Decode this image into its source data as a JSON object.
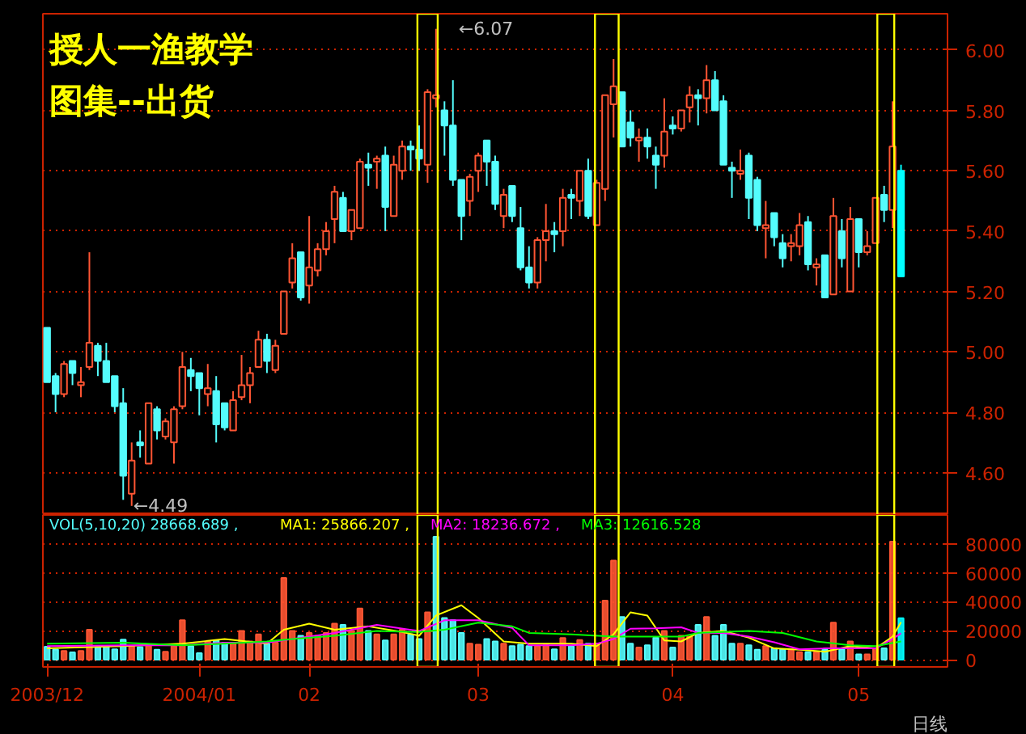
{
  "chart_data": [
    {
      "type": "candlestick",
      "categories": [
        "2003/12",
        null,
        null,
        null,
        null,
        null,
        null,
        null,
        null,
        null,
        null,
        null,
        null,
        null,
        null,
        null,
        null,
        null,
        "2004/01",
        null,
        null,
        null,
        null,
        null,
        null,
        null,
        null,
        null,
        null,
        null,
        null,
        "02",
        null,
        null,
        null,
        null,
        null,
        null,
        null,
        null,
        null,
        null,
        null,
        null,
        null,
        null,
        null,
        null,
        null,
        null,
        null,
        "03",
        null,
        null,
        null,
        null,
        null,
        null,
        null,
        null,
        null,
        null,
        null,
        null,
        null,
        null,
        null,
        null,
        null,
        null,
        null,
        null,
        null,
        null,
        "04",
        null,
        null,
        null,
        null,
        null,
        null,
        null,
        null,
        null,
        null,
        null,
        null,
        null,
        null,
        null,
        null,
        null,
        null,
        null,
        null,
        null,
        "05",
        null,
        null,
        null,
        null,
        null
      ],
      "ohlc": [
        [
          5.08,
          5.08,
          4.9,
          4.9
        ],
        [
          4.92,
          4.93,
          4.8,
          4.86
        ],
        [
          4.86,
          4.97,
          4.85,
          4.96
        ],
        [
          4.97,
          4.97,
          4.89,
          4.93
        ],
        [
          4.89,
          4.95,
          4.85,
          4.9
        ],
        [
          4.95,
          5.33,
          4.94,
          5.03
        ],
        [
          5.02,
          5.03,
          4.92,
          4.97
        ],
        [
          4.97,
          5.03,
          4.9,
          4.9
        ],
        [
          4.92,
          4.92,
          4.8,
          4.82
        ],
        [
          4.83,
          4.88,
          4.51,
          4.59
        ],
        [
          4.53,
          4.7,
          4.49,
          4.64
        ],
        [
          4.7,
          4.74,
          4.65,
          4.69
        ],
        [
          4.63,
          4.83,
          4.63,
          4.83
        ],
        [
          4.81,
          4.82,
          4.71,
          4.74
        ],
        [
          4.72,
          4.78,
          4.71,
          4.77
        ],
        [
          4.7,
          4.82,
          4.63,
          4.81
        ],
        [
          4.82,
          5.0,
          4.81,
          4.95
        ],
        [
          4.94,
          4.98,
          4.87,
          4.92
        ],
        [
          4.93,
          4.93,
          4.79,
          4.88
        ],
        [
          4.86,
          4.96,
          4.82,
          4.88
        ],
        [
          4.87,
          4.92,
          4.7,
          4.76
        ],
        [
          4.83,
          4.83,
          4.74,
          4.75
        ],
        [
          4.74,
          4.87,
          4.74,
          4.84
        ],
        [
          4.85,
          4.99,
          4.84,
          4.89
        ],
        [
          4.89,
          4.95,
          4.83,
          4.93
        ],
        [
          4.95,
          5.07,
          4.95,
          5.04
        ],
        [
          5.04,
          5.06,
          4.93,
          4.97
        ],
        [
          4.94,
          5.04,
          4.93,
          5.02
        ],
        [
          5.06,
          5.2,
          5.06,
          5.2
        ],
        [
          5.23,
          5.36,
          5.21,
          5.31
        ],
        [
          5.33,
          5.33,
          5.17,
          5.18
        ],
        [
          5.22,
          5.45,
          5.16,
          5.28
        ],
        [
          5.27,
          5.36,
          5.25,
          5.34
        ],
        [
          5.34,
          5.43,
          5.32,
          5.4
        ],
        [
          5.44,
          5.55,
          5.36,
          5.53
        ],
        [
          5.51,
          5.53,
          5.4,
          5.4
        ],
        [
          5.4,
          5.47,
          5.37,
          5.47
        ],
        [
          5.41,
          5.64,
          5.41,
          5.63
        ],
        [
          5.62,
          5.66,
          5.55,
          5.61
        ],
        [
          5.63,
          5.65,
          5.54,
          5.64
        ],
        [
          5.65,
          5.68,
          5.4,
          5.48
        ],
        [
          5.45,
          5.65,
          5.45,
          5.62
        ],
        [
          5.6,
          5.7,
          5.57,
          5.68
        ],
        [
          5.68,
          5.7,
          5.6,
          5.67
        ],
        [
          5.67,
          5.75,
          5.6,
          5.64
        ],
        [
          5.62,
          5.87,
          5.56,
          5.86
        ],
        [
          5.84,
          6.07,
          5.81,
          5.85
        ],
        [
          5.8,
          5.83,
          5.65,
          5.75
        ],
        [
          5.75,
          5.9,
          5.55,
          5.57
        ],
        [
          5.57,
          5.57,
          5.37,
          5.45
        ],
        [
          5.5,
          5.59,
          5.45,
          5.58
        ],
        [
          5.6,
          5.66,
          5.53,
          5.65
        ],
        [
          5.7,
          5.7,
          5.55,
          5.63
        ],
        [
          5.63,
          5.65,
          5.47,
          5.49
        ],
        [
          5.45,
          5.54,
          5.41,
          5.52
        ],
        [
          5.55,
          5.55,
          5.43,
          5.45
        ],
        [
          5.41,
          5.48,
          5.27,
          5.28
        ],
        [
          5.28,
          5.35,
          5.21,
          5.23
        ],
        [
          5.23,
          5.38,
          5.21,
          5.37
        ],
        [
          5.37,
          5.49,
          5.3,
          5.4
        ],
        [
          5.4,
          5.43,
          5.33,
          5.39
        ],
        [
          5.4,
          5.54,
          5.35,
          5.51
        ],
        [
          5.52,
          5.54,
          5.44,
          5.51
        ],
        [
          5.5,
          5.6,
          5.45,
          5.6
        ],
        [
          5.6,
          5.64,
          5.44,
          5.45
        ],
        [
          5.42,
          5.57,
          5.42,
          5.56
        ],
        [
          5.54,
          5.85,
          5.5,
          5.85
        ],
        [
          5.82,
          5.97,
          5.71,
          5.88
        ],
        [
          5.86,
          5.86,
          5.68,
          5.68
        ],
        [
          5.76,
          5.8,
          5.68,
          5.71
        ],
        [
          5.7,
          5.74,
          5.63,
          5.71
        ],
        [
          5.71,
          5.74,
          5.64,
          5.68
        ],
        [
          5.65,
          5.68,
          5.54,
          5.62
        ],
        [
          5.65,
          5.84,
          5.61,
          5.73
        ],
        [
          5.75,
          5.78,
          5.72,
          5.74
        ],
        [
          5.74,
          5.8,
          5.73,
          5.8
        ],
        [
          5.81,
          5.88,
          5.76,
          5.85
        ],
        [
          5.85,
          5.87,
          5.75,
          5.84
        ],
        [
          5.84,
          5.95,
          5.79,
          5.9
        ],
        [
          5.9,
          5.93,
          5.8,
          5.8
        ],
        [
          5.83,
          5.85,
          5.62,
          5.62
        ],
        [
          5.61,
          5.63,
          5.51,
          5.6
        ],
        [
          5.59,
          5.67,
          5.57,
          5.6
        ],
        [
          5.65,
          5.66,
          5.44,
          5.51
        ],
        [
          5.57,
          5.58,
          5.4,
          5.42
        ],
        [
          5.41,
          5.5,
          5.31,
          5.42
        ],
        [
          5.46,
          5.46,
          5.35,
          5.38
        ],
        [
          5.36,
          5.39,
          5.28,
          5.31
        ],
        [
          5.35,
          5.39,
          5.3,
          5.36
        ],
        [
          5.35,
          5.46,
          5.32,
          5.42
        ],
        [
          5.43,
          5.45,
          5.27,
          5.29
        ],
        [
          5.28,
          5.31,
          5.22,
          5.29
        ],
        [
          5.32,
          5.32,
          5.18,
          5.18
        ],
        [
          5.19,
          5.51,
          5.19,
          5.45
        ],
        [
          5.4,
          5.44,
          5.28,
          5.31
        ],
        [
          5.2,
          5.48,
          5.2,
          5.44
        ],
        [
          5.44,
          5.44,
          5.28,
          5.33
        ],
        [
          5.33,
          5.4,
          5.32,
          5.35
        ],
        [
          5.36,
          5.51,
          5.36,
          5.51
        ],
        [
          5.52,
          5.55,
          5.43,
          5.47
        ],
        [
          5.47,
          5.83,
          5.41,
          5.68
        ],
        [
          5.6,
          5.62,
          5.25,
          5.25
        ]
      ],
      "colors": [
        "#54fcfc",
        "#54fcfc",
        "#ff5533",
        "#54fcfc",
        "#ff5533",
        "#ff5533",
        "#54fcfc",
        "#54fcfc",
        "#54fcfc",
        "#54fcfc",
        "#ff5533",
        "#54fcfc",
        "#ff5533",
        "#54fcfc",
        "#ff5533",
        "#ff5533",
        "#ff5533",
        "#54fcfc",
        "#54fcfc",
        "#ff5533",
        "#54fcfc",
        "#54fcfc",
        "#ff5533",
        "#ff5533",
        "#ff5533",
        "#ff5533",
        "#54fcfc",
        "#ff5533",
        "#ff5533",
        "#ff5533",
        "#54fcfc",
        "#ff5533",
        "#ff5533",
        "#ff5533",
        "#ff5533",
        "#54fcfc",
        "#ff5533",
        "#ff5533",
        "#54fcfc",
        "#ff5533",
        "#54fcfc",
        "#ff5533",
        "#ff5533",
        "#54fcfc",
        "#54fcfc",
        "#ff5533",
        "#ff5533",
        "#54fcfc",
        "#54fcfc",
        "#54fcfc",
        "#ff5533",
        "#ff5533",
        "#54fcfc",
        "#54fcfc",
        "#ff5533",
        "#54fcfc",
        "#54fcfc",
        "#54fcfc",
        "#ff5533",
        "#ff5533",
        "#54fcfc",
        "#ff5533",
        "#54fcfc",
        "#ff5533",
        "#54fcfc",
        "#ff5533",
        "#ff5533",
        "#ff5533",
        "#54fcfc",
        "#54fcfc",
        "#ff5533",
        "#54fcfc",
        "#54fcfc",
        "#ff5533",
        "#54fcfc",
        "#ff5533",
        "#ff5533",
        "#54fcfc",
        "#ff5533",
        "#54fcfc",
        "#54fcfc",
        "#54fcfc",
        "#ff5533",
        "#54fcfc",
        "#54fcfc",
        "#ff5533",
        "#54fcfc",
        "#54fcfc",
        "#ff5533",
        "#ff5533",
        "#54fcfc",
        "#ff5533",
        "#54fcfc",
        "#ff5533",
        "#54fcfc",
        "#ff5533",
        "#54fcfc",
        "#ff5533",
        "#ff5533",
        "#54fcfc",
        "#ff5533",
        "#00ffff"
      ],
      "ylim": [
        4.46,
        6.12
      ],
      "yticks": [
        {
          "value": 4.6,
          "label": "4.60"
        },
        {
          "value": 4.8,
          "label": "4.80"
        },
        {
          "value": 5.0,
          "label": "5.00"
        },
        {
          "value": 5.2,
          "label": "5.20"
        },
        {
          "value": 5.4,
          "label": "5.40"
        },
        {
          "value": 5.6,
          "label": "5.60"
        },
        {
          "value": 5.8,
          "label": "5.80"
        },
        {
          "value": 6.0,
          "label": "6.00"
        }
      ],
      "grid": "y",
      "tick_labels": "y",
      "annotations": [
        "授人一渔教学",
        "图集--出货",
        "←6.07",
        "←4.49"
      ]
    },
    {
      "type": "bar",
      "categories": [
        "2003/12",
        null,
        null,
        null,
        null,
        null,
        null,
        null,
        null,
        null,
        null,
        null,
        null,
        null,
        null,
        null,
        null,
        null,
        "2004/01",
        null,
        null,
        null,
        null,
        null,
        null,
        null,
        null,
        null,
        null,
        null,
        null,
        "02",
        null,
        null,
        null,
        null,
        null,
        null,
        null,
        null,
        null,
        null,
        null,
        null,
        null,
        null,
        null,
        null,
        null,
        null,
        null,
        "03",
        null,
        null,
        null,
        null,
        null,
        null,
        null,
        null,
        null,
        null,
        null,
        null,
        null,
        null,
        null,
        null,
        null,
        null,
        null,
        null,
        null,
        null,
        "04",
        null,
        null,
        null,
        null,
        null,
        null,
        null,
        null,
        null,
        null,
        null,
        null,
        null,
        null,
        null,
        null,
        null,
        null,
        null,
        null,
        null,
        "05",
        null,
        null,
        null,
        null,
        null
      ],
      "series": [
        {
          "name": "VOL(5,10,20)  28668.689 ,",
          "type": "bar",
          "values": [
            9000,
            7000,
            6000,
            5000,
            6000,
            20700,
            8700,
            9400,
            7100,
            13900,
            9400,
            8700,
            9400,
            6800,
            5500,
            9400,
            27200,
            9400,
            4500,
            12600,
            13300,
            11700,
            11000,
            19800,
            12600,
            17500,
            11000,
            11700,
            56400,
            19800,
            16500,
            18500,
            16500,
            18500,
            24900,
            24000,
            19800,
            35300,
            19800,
            17500,
            13300,
            17500,
            20700,
            17500,
            14300,
            32700,
            84900,
            28800,
            27200,
            18500,
            11000,
            10400,
            14300,
            12600,
            11000,
            9400,
            10400,
            9400,
            9400,
            10000,
            7100,
            14900,
            9400,
            13600,
            11000,
            11000,
            40800,
            68400,
            29500,
            11000,
            8400,
            10000,
            15200,
            19800,
            8400,
            16500,
            15900,
            24000,
            29500,
            16500,
            24000,
            11000,
            11000,
            10000,
            6800,
            9400,
            7800,
            7100,
            6800,
            5200,
            5200,
            5200,
            6800,
            25600,
            7100,
            12600,
            3600,
            3600,
            7800,
            7800,
            81600,
            28668.689
          ],
          "colors": [
            "#54fcfc",
            "#54fcfc",
            "#ff5533",
            "#54fcfc",
            "#ff5533",
            "#ff5533",
            "#54fcfc",
            "#54fcfc",
            "#54fcfc",
            "#54fcfc",
            "#ff5533",
            "#54fcfc",
            "#ff5533",
            "#54fcfc",
            "#ff5533",
            "#ff5533",
            "#ff5533",
            "#54fcfc",
            "#54fcfc",
            "#ff5533",
            "#54fcfc",
            "#54fcfc",
            "#ff5533",
            "#ff5533",
            "#ff5533",
            "#ff5533",
            "#54fcfc",
            "#ff5533",
            "#ff5533",
            "#ff5533",
            "#54fcfc",
            "#ff5533",
            "#ff5533",
            "#ff5533",
            "#ff5533",
            "#54fcfc",
            "#ff5533",
            "#ff5533",
            "#54fcfc",
            "#ff5533",
            "#54fcfc",
            "#ff5533",
            "#ff5533",
            "#54fcfc",
            "#54fcfc",
            "#ff5533",
            "#54fcfc",
            "#54fcfc",
            "#54fcfc",
            "#54fcfc",
            "#ff5533",
            "#ff5533",
            "#54fcfc",
            "#54fcfc",
            "#ff5533",
            "#54fcfc",
            "#54fcfc",
            "#54fcfc",
            "#ff5533",
            "#ff5533",
            "#54fcfc",
            "#ff5533",
            "#54fcfc",
            "#ff5533",
            "#54fcfc",
            "#ff5533",
            "#ff5533",
            "#ff5533",
            "#54fcfc",
            "#54fcfc",
            "#ff5533",
            "#54fcfc",
            "#54fcfc",
            "#ff5533",
            "#54fcfc",
            "#ff5533",
            "#ff5533",
            "#54fcfc",
            "#ff5533",
            "#54fcfc",
            "#54fcfc",
            "#54fcfc",
            "#ff5533",
            "#54fcfc",
            "#54fcfc",
            "#ff5533",
            "#54fcfc",
            "#54fcfc",
            "#ff5533",
            "#ff5533",
            "#54fcfc",
            "#ff5533",
            "#54fcfc",
            "#ff5533",
            "#54fcfc",
            "#ff5533",
            "#54fcfc",
            "#ff5533",
            "#ff5533",
            "#54fcfc",
            "#ff5533",
            "#00ffff"
          ]
        },
        {
          "name": "MA1: 25866.207 ,",
          "type": "line",
          "color": "#ffff00",
          "values": [
            7800,
            null,
            null,
            null,
            null,
            null,
            null,
            null,
            null,
            9400,
            null,
            null,
            null,
            null,
            null,
            null,
            11000,
            null,
            null,
            null,
            null,
            14300,
            null,
            null,
            null,
            null,
            11000,
            null,
            20700,
            null,
            null,
            24900,
            null,
            null,
            20700,
            null,
            null,
            null,
            23000,
            null,
            null,
            null,
            19100,
            null,
            16500,
            null,
            30500,
            null,
            null,
            37600,
            null,
            28800,
            null,
            null,
            12600,
            null,
            null,
            11000,
            null,
            null,
            null,
            null,
            11000,
            null,
            null,
            9400,
            null,
            17500,
            null,
            32700,
            null,
            30500,
            null,
            13300,
            null,
            12600,
            null,
            18500,
            null,
            null,
            19800,
            null,
            null,
            15200,
            null,
            null,
            7800,
            null,
            null,
            6800,
            null,
            null,
            5500,
            null,
            null,
            9400,
            null,
            null,
            7800,
            null,
            15900,
            25866.207
          ]
        },
        {
          "name": "MA2: 18236.672 ,",
          "type": "line",
          "color": "#ff00ff",
          "values": [
            9400,
            null,
            null,
            null,
            null,
            null,
            null,
            null,
            null,
            10000,
            null,
            null,
            null,
            null,
            null,
            null,
            10000,
            null,
            null,
            null,
            null,
            11700,
            null,
            null,
            null,
            null,
            11700,
            null,
            null,
            14300,
            null,
            null,
            null,
            null,
            18500,
            null,
            null,
            null,
            null,
            24000,
            null,
            null,
            null,
            null,
            19800,
            null,
            null,
            27200,
            null,
            null,
            null,
            27200,
            null,
            null,
            null,
            22000,
            15900,
            10000,
            null,
            null,
            null,
            null,
            10000,
            null,
            null,
            11000,
            null,
            14300,
            null,
            21400,
            null,
            null,
            21700,
            null,
            null,
            22400,
            null,
            18500,
            null,
            null,
            18500,
            null,
            null,
            15900,
            null,
            null,
            12000,
            null,
            null,
            7100,
            null,
            null,
            7800,
            null,
            null,
            7800,
            null,
            null,
            7800,
            null,
            14300,
            18236.672
          ]
        },
        {
          "name": "MA3: 12616.528",
          "type": "line",
          "color": "#00ff00",
          "values": [
            11000,
            null,
            null,
            null,
            null,
            null,
            null,
            null,
            null,
            11700,
            null,
            null,
            null,
            null,
            null,
            null,
            10000,
            null,
            null,
            null,
            null,
            11000,
            null,
            null,
            null,
            null,
            12600,
            null,
            null,
            14300,
            null,
            null,
            null,
            null,
            16500,
            null,
            null,
            null,
            null,
            19800,
            null,
            null,
            null,
            null,
            19100,
            null,
            null,
            20700,
            null,
            null,
            null,
            25600,
            null,
            null,
            null,
            23000,
            null,
            18500,
            null,
            null,
            null,
            null,
            17500,
            null,
            null,
            null,
            null,
            15900,
            null,
            15900,
            null,
            null,
            null,
            null,
            null,
            15900,
            null,
            18500,
            null,
            null,
            null,
            null,
            null,
            19800,
            null,
            null,
            null,
            18500,
            null,
            null,
            null,
            12600,
            null,
            null,
            null,
            10000,
            null,
            null,
            9400,
            null,
            null,
            12616.528
          ]
        }
      ],
      "ylim": [
        -5000,
        100000
      ],
      "yticks": [
        0,
        20000,
        40000,
        60000,
        80000
      ],
      "grid": "y",
      "legend": "top left",
      "annotations": [
        "日线"
      ]
    }
  ]
}
